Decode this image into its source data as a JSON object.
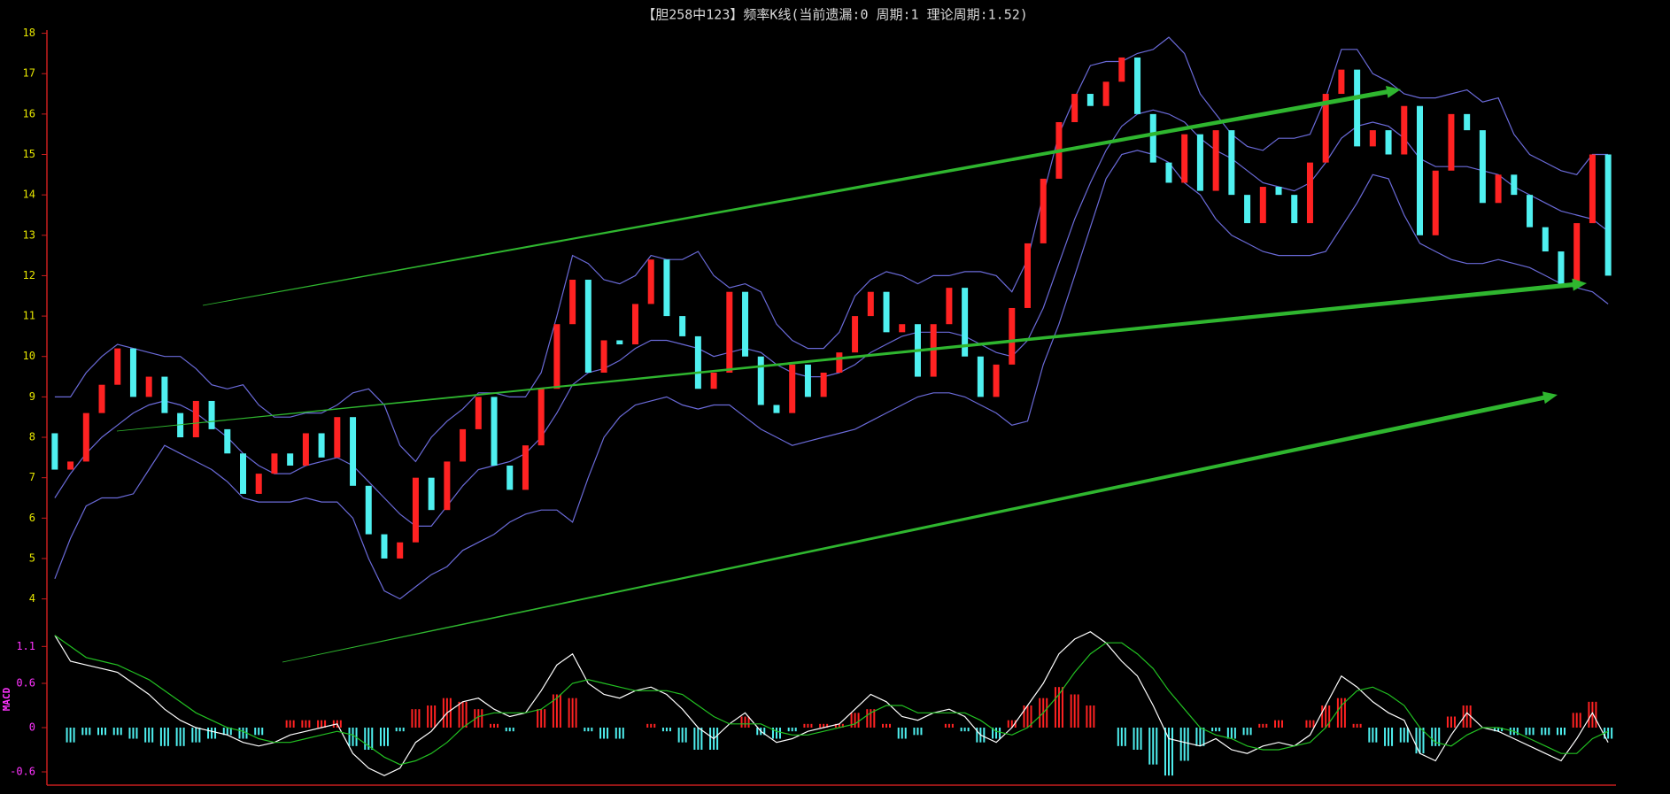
{
  "chart_data": [
    {
      "type": "candlestick",
      "title": "【胆258中123】频率K线(当前遗漏:0 周期:1 理论周期:1.52)",
      "up_color": "#ff2222",
      "down_color": "#4ff0f0",
      "open": [
        8.1,
        7.2,
        7.4,
        8.6,
        9.3,
        10.2,
        9.0,
        9.5,
        8.6,
        8.0,
        8.9,
        8.2,
        7.6,
        6.6,
        7.1,
        7.6,
        7.3,
        8.1,
        7.5,
        8.5,
        6.8,
        5.6,
        5.0,
        5.4,
        7.0,
        6.2,
        7.4,
        8.2,
        9.0,
        7.3,
        6.7,
        7.8,
        9.2,
        10.8,
        11.9,
        9.6,
        10.4,
        10.3,
        11.3,
        12.4,
        11.0,
        10.5,
        9.2,
        9.6,
        11.6,
        10.0,
        8.8,
        8.6,
        9.8,
        9.0,
        9.6,
        10.1,
        11.0,
        11.6,
        10.6,
        10.8,
        9.5,
        10.8,
        11.7,
        10.0,
        9.0,
        9.8,
        11.2,
        12.8,
        14.4,
        15.8,
        16.5,
        16.2,
        16.8,
        17.4,
        16.0,
        14.8,
        14.3,
        15.5,
        14.1,
        15.6,
        14.0,
        13.3,
        14.2,
        14.0,
        13.3,
        14.8,
        16.5,
        17.1,
        15.2,
        15.6,
        15.0,
        16.2,
        13.0,
        14.6,
        16.0,
        15.6,
        13.8,
        14.5,
        14.0,
        13.2,
        12.6,
        11.8,
        13.3,
        15.0
      ],
      "close": [
        7.2,
        7.4,
        8.6,
        9.3,
        10.2,
        9.0,
        9.5,
        8.6,
        8.0,
        8.9,
        8.2,
        7.6,
        6.6,
        7.1,
        7.6,
        7.3,
        8.1,
        7.5,
        8.5,
        6.8,
        5.6,
        5.0,
        5.4,
        7.0,
        6.2,
        7.4,
        8.2,
        9.0,
        7.3,
        6.7,
        7.8,
        9.2,
        10.8,
        11.9,
        9.6,
        10.4,
        10.3,
        11.3,
        12.4,
        11.0,
        10.5,
        9.2,
        9.6,
        11.6,
        10.0,
        8.8,
        8.6,
        9.8,
        9.0,
        9.6,
        10.1,
        11.0,
        11.6,
        10.6,
        10.8,
        9.5,
        10.8,
        11.7,
        10.0,
        9.0,
        9.8,
        11.2,
        12.8,
        14.4,
        15.8,
        16.5,
        16.2,
        16.8,
        17.4,
        16.0,
        14.8,
        14.3,
        15.5,
        14.1,
        15.6,
        14.0,
        13.3,
        14.2,
        14.0,
        13.3,
        14.8,
        16.5,
        17.1,
        15.2,
        15.6,
        15.0,
        16.2,
        13.0,
        14.6,
        16.0,
        15.6,
        13.8,
        14.5,
        14.0,
        13.2,
        12.6,
        11.8,
        13.3,
        15.0,
        12.0
      ],
      "series": [
        {
          "color": "#6a6ad8",
          "values": [
            9.0,
            9.0,
            9.6,
            10.0,
            10.3,
            10.2,
            10.1,
            10.0,
            10.0,
            9.7,
            9.3,
            9.2,
            9.3,
            8.8,
            8.5,
            8.5,
            8.6,
            8.6,
            8.8,
            9.1,
            9.2,
            8.8,
            7.8,
            7.4,
            8.0,
            8.4,
            8.7,
            9.1,
            9.1,
            9.0,
            9.0,
            9.6,
            11.0,
            12.5,
            12.3,
            11.9,
            11.8,
            12.0,
            12.5,
            12.4,
            12.4,
            12.6,
            12.0,
            11.7,
            11.8,
            11.6,
            10.8,
            10.4,
            10.2,
            10.2,
            10.6,
            11.5,
            11.9,
            12.1,
            12.0,
            11.8,
            12.0,
            12.0,
            12.1,
            12.1,
            12.0,
            11.6,
            12.4,
            14.0,
            15.5,
            16.4,
            17.2,
            17.3,
            17.3,
            17.5,
            17.6,
            17.9,
            17.5,
            16.5,
            16.0,
            15.5,
            15.2,
            15.1,
            15.4,
            15.4,
            15.5,
            16.4,
            17.6,
            17.6,
            17.0,
            16.8,
            16.5,
            16.4,
            16.4,
            16.5,
            16.6,
            16.3,
            16.4,
            15.5,
            15.0,
            14.8,
            14.6,
            14.5,
            15.0,
            15.0
          ]
        },
        {
          "color": "#6a6ad8",
          "values": [
            6.5,
            7.1,
            7.6,
            8.0,
            8.3,
            8.6,
            8.8,
            8.9,
            8.8,
            8.6,
            8.3,
            8.0,
            7.6,
            7.3,
            7.1,
            7.1,
            7.3,
            7.4,
            7.5,
            7.3,
            6.9,
            6.5,
            6.1,
            5.8,
            5.8,
            6.3,
            6.8,
            7.2,
            7.3,
            7.4,
            7.6,
            8.0,
            8.6,
            9.3,
            9.6,
            9.7,
            9.9,
            10.2,
            10.4,
            10.4,
            10.3,
            10.2,
            10.0,
            10.1,
            10.2,
            10.1,
            9.8,
            9.6,
            9.5,
            9.5,
            9.6,
            9.8,
            10.1,
            10.3,
            10.5,
            10.6,
            10.6,
            10.6,
            10.5,
            10.3,
            10.1,
            10.0,
            10.4,
            11.2,
            12.3,
            13.4,
            14.3,
            15.1,
            15.7,
            16.0,
            16.1,
            16.0,
            15.8,
            15.4,
            15.1,
            14.9,
            14.6,
            14.3,
            14.2,
            14.1,
            14.3,
            14.8,
            15.4,
            15.7,
            15.8,
            15.7,
            15.4,
            14.9,
            14.7,
            14.7,
            14.7,
            14.6,
            14.5,
            14.2,
            14.0,
            13.8,
            13.6,
            13.5,
            13.4,
            13.1
          ]
        },
        {
          "color": "#6a6ad8",
          "values": [
            4.5,
            5.5,
            6.3,
            6.5,
            6.5,
            6.6,
            7.2,
            7.8,
            7.6,
            7.4,
            7.2,
            6.9,
            6.5,
            6.4,
            6.4,
            6.4,
            6.5,
            6.4,
            6.4,
            6.0,
            5.0,
            4.2,
            4.0,
            4.3,
            4.6,
            4.8,
            5.2,
            5.4,
            5.6,
            5.9,
            6.1,
            6.2,
            6.2,
            5.9,
            7.0,
            8.0,
            8.5,
            8.8,
            8.9,
            9.0,
            8.8,
            8.7,
            8.8,
            8.8,
            8.5,
            8.2,
            8.0,
            7.8,
            7.9,
            8.0,
            8.1,
            8.2,
            8.4,
            8.6,
            8.8,
            9.0,
            9.1,
            9.1,
            9.0,
            8.8,
            8.6,
            8.3,
            8.4,
            9.8,
            10.8,
            12.0,
            13.2,
            14.4,
            15.0,
            15.1,
            15.0,
            14.8,
            14.3,
            14.0,
            13.4,
            13.0,
            12.8,
            12.6,
            12.5,
            12.5,
            12.5,
            12.6,
            13.2,
            13.8,
            14.5,
            14.4,
            13.5,
            12.8,
            12.6,
            12.4,
            12.3,
            12.3,
            12.4,
            12.3,
            12.2,
            12.0,
            11.8,
            11.7,
            11.6,
            11.3
          ]
        }
      ],
      "ylim": [
        3.4,
        18.1
      ],
      "yticks": [
        4,
        5,
        6,
        7,
        8,
        9,
        10,
        11,
        12,
        13,
        14,
        15,
        16,
        17,
        18
      ]
    },
    {
      "type": "macd",
      "ylabel": "MACD",
      "up_color": "#ff2222",
      "down_color": "#4ff0f0",
      "series": [
        {
          "color": "#ffffff",
          "values": [
            1.25,
            0.9,
            0.85,
            0.8,
            0.75,
            0.6,
            0.45,
            0.25,
            0.1,
            0.0,
            -0.05,
            -0.1,
            -0.2,
            -0.25,
            -0.2,
            -0.1,
            -0.05,
            0.0,
            0.05,
            -0.35,
            -0.55,
            -0.65,
            -0.55,
            -0.2,
            -0.05,
            0.2,
            0.35,
            0.4,
            0.25,
            0.15,
            0.2,
            0.5,
            0.85,
            1.0,
            0.6,
            0.45,
            0.4,
            0.5,
            0.55,
            0.45,
            0.25,
            0.0,
            -0.15,
            0.05,
            0.2,
            -0.05,
            -0.2,
            -0.15,
            -0.05,
            0.0,
            0.05,
            0.25,
            0.45,
            0.35,
            0.15,
            0.1,
            0.2,
            0.25,
            0.15,
            -0.1,
            -0.2,
            0.0,
            0.3,
            0.6,
            1.0,
            1.2,
            1.3,
            1.15,
            0.9,
            0.7,
            0.3,
            -0.15,
            -0.2,
            -0.25,
            -0.15,
            -0.3,
            -0.35,
            -0.25,
            -0.2,
            -0.25,
            -0.1,
            0.3,
            0.7,
            0.55,
            0.35,
            0.2,
            0.1,
            -0.35,
            -0.45,
            -0.1,
            0.2,
            0.0,
            -0.05,
            -0.15,
            -0.25,
            -0.35,
            -0.45,
            -0.15,
            0.2,
            -0.2
          ]
        },
        {
          "color": "#22c022",
          "values": [
            1.25,
            1.1,
            0.95,
            0.9,
            0.85,
            0.75,
            0.65,
            0.5,
            0.35,
            0.2,
            0.1,
            0.0,
            -0.05,
            -0.15,
            -0.2,
            -0.2,
            -0.15,
            -0.1,
            -0.05,
            -0.1,
            -0.25,
            -0.4,
            -0.5,
            -0.45,
            -0.35,
            -0.2,
            0.0,
            0.15,
            0.2,
            0.2,
            0.2,
            0.25,
            0.4,
            0.6,
            0.65,
            0.6,
            0.55,
            0.5,
            0.5,
            0.5,
            0.45,
            0.3,
            0.15,
            0.05,
            0.05,
            0.05,
            -0.05,
            -0.1,
            -0.1,
            -0.05,
            0.0,
            0.05,
            0.2,
            0.3,
            0.3,
            0.2,
            0.2,
            0.2,
            0.2,
            0.1,
            -0.05,
            -0.1,
            0.0,
            0.2,
            0.45,
            0.75,
            1.0,
            1.15,
            1.15,
            1.0,
            0.8,
            0.5,
            0.25,
            0.0,
            -0.1,
            -0.15,
            -0.25,
            -0.3,
            -0.3,
            -0.25,
            -0.2,
            0.0,
            0.3,
            0.5,
            0.55,
            0.45,
            0.3,
            0.0,
            -0.2,
            -0.25,
            -0.1,
            0.0,
            0.0,
            -0.05,
            -0.15,
            -0.25,
            -0.35,
            -0.35,
            -0.15,
            -0.05
          ]
        }
      ],
      "histogram": [
        0,
        -0.2,
        -0.1,
        -0.1,
        -0.1,
        -0.15,
        -0.2,
        -0.25,
        -0.25,
        -0.2,
        -0.15,
        -0.1,
        -0.15,
        -0.1,
        0.0,
        0.1,
        0.1,
        0.1,
        0.1,
        -0.25,
        -0.3,
        -0.25,
        -0.05,
        0.25,
        0.3,
        0.4,
        0.35,
        0.25,
        0.05,
        -0.05,
        0.0,
        0.25,
        0.45,
        0.4,
        -0.05,
        -0.15,
        -0.15,
        0.0,
        0.05,
        -0.05,
        -0.2,
        -0.3,
        -0.3,
        0.0,
        0.15,
        -0.1,
        -0.15,
        -0.05,
        0.05,
        0.05,
        0.05,
        0.2,
        0.25,
        0.05,
        -0.15,
        -0.1,
        0.0,
        0.05,
        -0.05,
        -0.2,
        -0.15,
        0.1,
        0.3,
        0.4,
        0.55,
        0.45,
        0.3,
        0.0,
        -0.25,
        -0.3,
        -0.5,
        -0.65,
        -0.45,
        -0.25,
        -0.05,
        -0.15,
        -0.1,
        0.05,
        0.1,
        0.0,
        0.1,
        0.3,
        0.4,
        0.05,
        -0.2,
        -0.25,
        -0.2,
        -0.35,
        -0.25,
        0.15,
        0.3,
        0.0,
        -0.05,
        -0.1,
        -0.1,
        -0.1,
        -0.1,
        0.2,
        0.35,
        -0.15
      ],
      "ylim": [
        -0.78,
        1.38
      ],
      "yticks": [
        -0.6,
        0,
        0.6,
        1.1
      ]
    }
  ]
}
